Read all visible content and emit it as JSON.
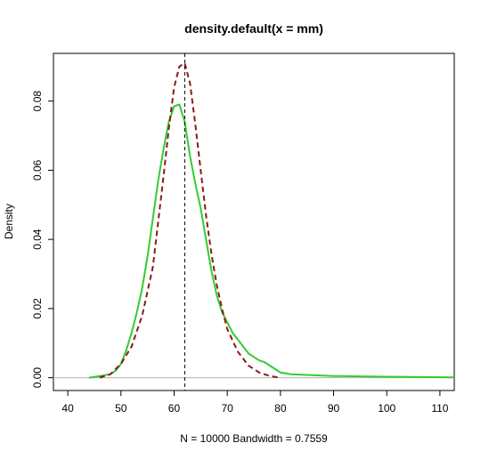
{
  "chart_data": {
    "type": "line",
    "title": "density.default(x = mm)",
    "xlabel": "N = 10000   Bandwidth = 0.7559",
    "ylabel": "Density",
    "xlim": [
      37.3,
      112.7
    ],
    "ylim": [
      -0.0037,
      0.0938
    ],
    "x_ticks": [
      40,
      50,
      60,
      70,
      80,
      90,
      100,
      110
    ],
    "y_ticks": [
      0.0,
      0.02,
      0.04,
      0.06,
      0.08
    ],
    "x_tick_labels": [
      "40",
      "50",
      "60",
      "70",
      "80",
      "90",
      "100",
      "110"
    ],
    "y_tick_labels": [
      "0.00",
      "0.02",
      "0.04",
      "0.06",
      "0.08"
    ],
    "grid": false,
    "baseline_y": 0,
    "vline_x": 62,
    "series": [
      {
        "style": "solid",
        "color": "#33cc33",
        "x": [
          44,
          46,
          48,
          49,
          50,
          51,
          52,
          53,
          54,
          55,
          56,
          57,
          58,
          59,
          60,
          61,
          62,
          63,
          64,
          65,
          66,
          67,
          68,
          69,
          70,
          71,
          72,
          73,
          74,
          75,
          76,
          77,
          78,
          79,
          80,
          82,
          85,
          90,
          95,
          100,
          105,
          112.7
        ],
        "y": [
          0.0,
          0.0005,
          0.001,
          0.002,
          0.004,
          0.008,
          0.013,
          0.019,
          0.026,
          0.035,
          0.046,
          0.057,
          0.066,
          0.074,
          0.0785,
          0.079,
          0.074,
          0.064,
          0.056,
          0.049,
          0.04,
          0.031,
          0.024,
          0.019,
          0.016,
          0.013,
          0.011,
          0.009,
          0.007,
          0.006,
          0.005,
          0.0045,
          0.0035,
          0.0025,
          0.0015,
          0.001,
          0.0008,
          0.0005,
          0.0004,
          0.0003,
          0.0002,
          0.0001
        ]
      },
      {
        "style": "dashed",
        "color": "#8b1a1a",
        "x": [
          46,
          48,
          50,
          52,
          54,
          56,
          58,
          59,
          60,
          61,
          62,
          63,
          64,
          65,
          66,
          67,
          68,
          69,
          70,
          72,
          74,
          76,
          78,
          80
        ],
        "y": [
          0.0,
          0.001,
          0.004,
          0.009,
          0.018,
          0.032,
          0.058,
          0.072,
          0.084,
          0.09,
          0.091,
          0.085,
          0.073,
          0.06,
          0.047,
          0.036,
          0.027,
          0.02,
          0.014,
          0.0075,
          0.0035,
          0.0015,
          0.0005,
          0.0
        ]
      }
    ]
  }
}
